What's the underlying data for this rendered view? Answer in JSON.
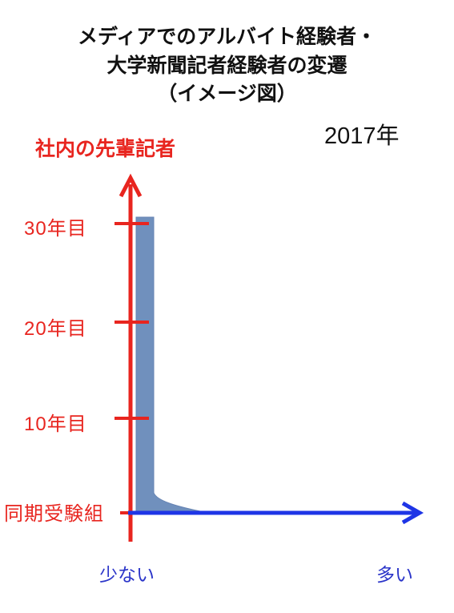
{
  "title": {
    "line1": "メディアでのアルバイト経験者・",
    "line2": "大学新聞記者経験者の変遷",
    "line3": "（イメージ図）"
  },
  "year": "2017年",
  "axes": {
    "y_title": "社内の先輩記者",
    "y_ticks": [
      "30年目",
      "20年目",
      "10年目",
      "同期受験組"
    ],
    "x_low": "少ない",
    "x_high": "多い"
  },
  "colors": {
    "y_axis": "#e8251f",
    "x_axis": "#1e35e6",
    "fill": "#7090bd"
  }
}
